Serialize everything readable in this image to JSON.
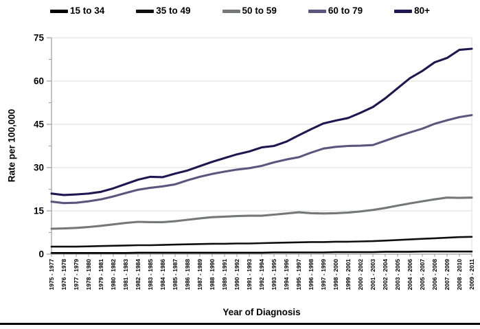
{
  "chart_data": {
    "type": "line",
    "title": "",
    "xlabel": "Year of Diagnosis",
    "ylabel": "Rate per 100,000",
    "ylim": [
      0,
      75
    ],
    "yticks": [
      0,
      15,
      30,
      45,
      60,
      75
    ],
    "y_minor_tick_interval": 7.5,
    "grid": true,
    "legend_position": "top",
    "categories": [
      "1975 - 1977",
      "1976 - 1978",
      "1977 - 1979",
      "1978 - 1980",
      "1979 - 1981",
      "1980 - 1982",
      "1981 - 1983",
      "1982 - 1984",
      "1983 - 1985",
      "1984 - 1986",
      "1985 - 1987",
      "1986 - 1988",
      "1987 - 1989",
      "1988 - 1990",
      "1989 - 1991",
      "1990 - 1992",
      "1991 - 1993",
      "1992 - 1994",
      "1993 - 1995",
      "1994 - 1996",
      "1995 - 1997",
      "1996 - 1998",
      "1997 - 1999",
      "1998 - 2000",
      "1999 - 2001",
      "2000 - 2002",
      "2001 - 2003",
      "2002 - 2004",
      "2003 - 2005",
      "2004 - 2006",
      "2005 - 2007",
      "2006 - 2008",
      "2007 - 2009",
      "2008 - 2010",
      "2009 - 2011"
    ],
    "series": [
      {
        "name": "15 to 34",
        "color": "#000000",
        "values": [
          0.4,
          0.4,
          0.4,
          0.4,
          0.4,
          0.4,
          0.4,
          0.5,
          0.5,
          0.5,
          0.5,
          0.5,
          0.5,
          0.5,
          0.5,
          0.5,
          0.5,
          0.5,
          0.6,
          0.6,
          0.6,
          0.6,
          0.6,
          0.7,
          0.7,
          0.7,
          0.7,
          0.8,
          0.8,
          0.8,
          0.9,
          0.9,
          0.9,
          0.9,
          0.9
        ]
      },
      {
        "name": "35 to 49",
        "color": "#0f0f0f",
        "values": [
          2.6,
          2.6,
          2.6,
          2.7,
          2.8,
          2.9,
          3.0,
          3.1,
          3.1,
          3.2,
          3.3,
          3.4,
          3.5,
          3.6,
          3.6,
          3.7,
          3.7,
          3.8,
          3.9,
          4.0,
          4.1,
          4.2,
          4.2,
          4.3,
          4.3,
          4.4,
          4.5,
          4.7,
          4.9,
          5.1,
          5.3,
          5.5,
          5.7,
          5.9,
          6.0
        ]
      },
      {
        "name": "50 to 59",
        "color": "#75777a",
        "values": [
          8.8,
          8.9,
          9.1,
          9.4,
          9.8,
          10.3,
          10.8,
          11.2,
          11.1,
          11.1,
          11.4,
          11.9,
          12.4,
          12.8,
          13.0,
          13.2,
          13.3,
          13.3,
          13.7,
          14.1,
          14.5,
          14.2,
          14.1,
          14.2,
          14.4,
          14.8,
          15.3,
          16.0,
          16.8,
          17.6,
          18.3,
          19.0,
          19.6,
          19.5,
          19.6
        ]
      },
      {
        "name": "60 to 79",
        "color": "#5c567f",
        "values": [
          18.2,
          17.7,
          17.8,
          18.3,
          19.0,
          20.0,
          21.2,
          22.3,
          23.0,
          23.5,
          24.2,
          25.6,
          26.8,
          27.8,
          28.6,
          29.3,
          29.8,
          30.6,
          31.8,
          32.8,
          33.6,
          35.2,
          36.6,
          37.2,
          37.5,
          37.6,
          37.8,
          39.3,
          40.8,
          42.2,
          43.5,
          45.2,
          46.4,
          47.5,
          48.2
        ]
      },
      {
        "name": "80+",
        "color": "#1e1850",
        "values": [
          21.0,
          20.5,
          20.7,
          21.0,
          21.6,
          22.8,
          24.3,
          25.8,
          26.8,
          26.7,
          27.9,
          29.0,
          30.5,
          32.0,
          33.3,
          34.6,
          35.6,
          37.0,
          37.5,
          39.0,
          41.2,
          43.3,
          45.3,
          46.3,
          47.2,
          49.0,
          51.0,
          54.0,
          57.5,
          61.0,
          63.5,
          66.5,
          68.0,
          70.8,
          71.2
        ]
      }
    ],
    "colors": {
      "gridline": "#dcdcdc",
      "axis": "#9c9c9c",
      "tick_label": "#000000"
    }
  }
}
